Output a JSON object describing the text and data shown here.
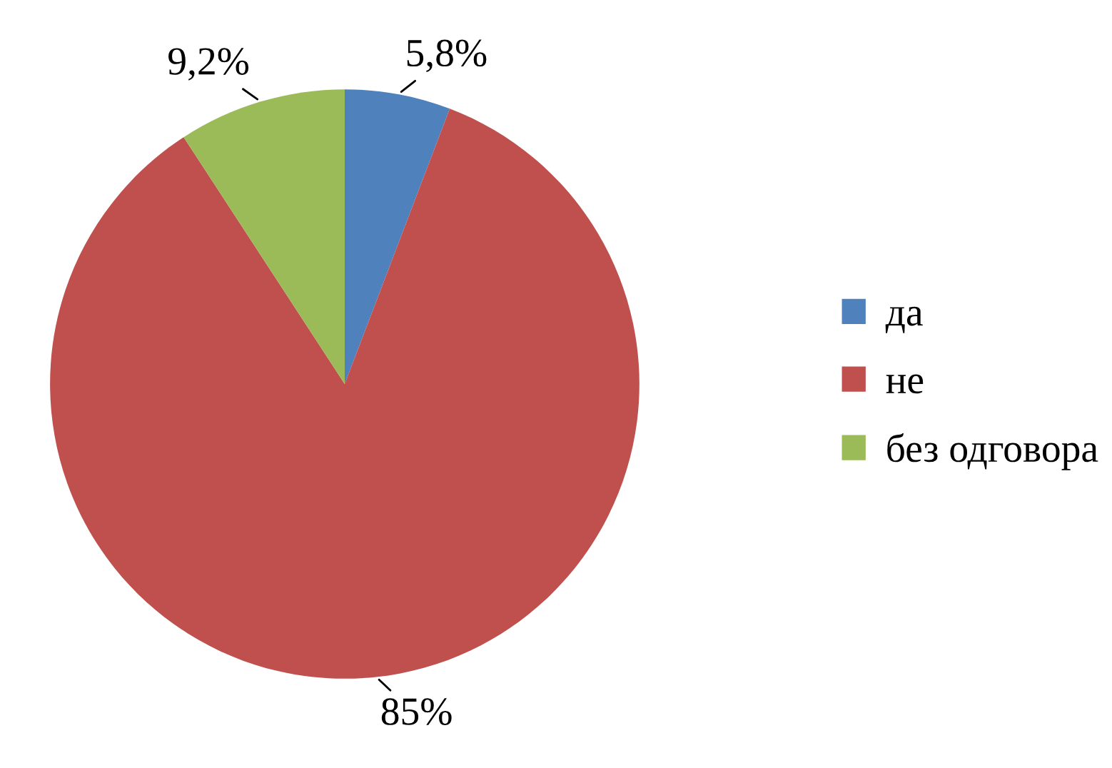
{
  "chart_data": {
    "type": "pie",
    "categories": [
      "да",
      "не",
      "без одговора"
    ],
    "values": [
      5.8,
      85,
      9.2
    ],
    "value_labels": [
      "5,8%",
      "85%",
      "9,2%"
    ],
    "colors": [
      "#4f81bd",
      "#c0504d",
      "#9bbb59"
    ],
    "legend": "right"
  }
}
